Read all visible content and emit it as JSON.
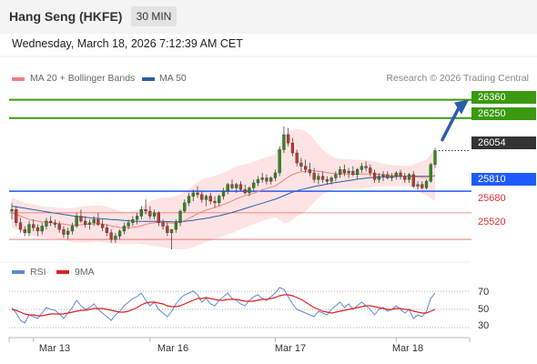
{
  "header": {
    "title": "Hang Seng (HKFE)",
    "timeframe": "30 MIN"
  },
  "datetime": "Wednesday, March 18, 2026 7:12:39 AM CET",
  "legend": {
    "items": [
      {
        "label": "MA 20 + Bollinger Bands",
        "color": "#f08080"
      },
      {
        "label": "MA 50",
        "color": "#2b5ea8"
      }
    ],
    "credit": "Research © 2026 Trading Central"
  },
  "price_levels": {
    "resistance_2": "26360",
    "resistance_1": "26250",
    "current": "26054",
    "pivot": "25810",
    "support_1": "25680",
    "support_2": "25520"
  },
  "rsi_panel": {
    "legend": [
      {
        "label": "RSI",
        "color": "#5b8ad6"
      },
      {
        "label": "9MA",
        "color": "#e02020"
      }
    ],
    "levels": [
      "70",
      "50",
      "30"
    ]
  },
  "x_axis": {
    "labels": [
      "Mar 13",
      "Mar 16",
      "Mar 17",
      "Mar 18"
    ]
  },
  "colors": {
    "resistance": "#3a9a10",
    "pivot": "#1e5bff",
    "support": "#e03030",
    "bull_candle": "#2f8a1a",
    "bear_candle": "#c0392b",
    "bollinger_fill": "#fde3e3",
    "arrow": "#2b5ea8"
  },
  "chart_data": {
    "type": "candlestick",
    "ohlc": [
      [
        25690,
        25740,
        25640,
        25700
      ],
      [
        25700,
        25720,
        25600,
        25620
      ],
      [
        25620,
        25650,
        25560,
        25580
      ],
      [
        25580,
        25600,
        25540,
        25560
      ],
      [
        25560,
        25630,
        25540,
        25610
      ],
      [
        25610,
        25640,
        25570,
        25590
      ],
      [
        25590,
        25610,
        25540,
        25570
      ],
      [
        25570,
        25620,
        25550,
        25600
      ],
      [
        25600,
        25650,
        25580,
        25630
      ],
      [
        25630,
        25660,
        25600,
        25620
      ],
      [
        25620,
        25640,
        25590,
        25610
      ],
      [
        25610,
        25630,
        25560,
        25580
      ],
      [
        25580,
        25600,
        25530,
        25550
      ],
      [
        25550,
        25590,
        25520,
        25570
      ],
      [
        25570,
        25620,
        25550,
        25600
      ],
      [
        25600,
        25680,
        25590,
        25660
      ],
      [
        25660,
        25700,
        25620,
        25630
      ],
      [
        25630,
        25660,
        25590,
        25610
      ],
      [
        25610,
        25640,
        25580,
        25620
      ],
      [
        25620,
        25660,
        25600,
        25640
      ],
      [
        25640,
        25680,
        25600,
        25610
      ],
      [
        25610,
        25640,
        25570,
        25590
      ],
      [
        25590,
        25610,
        25540,
        25560
      ],
      [
        25560,
        25580,
        25500,
        25520
      ],
      [
        25520,
        25560,
        25500,
        25540
      ],
      [
        25540,
        25580,
        25520,
        25570
      ],
      [
        25570,
        25620,
        25550,
        25600
      ],
      [
        25600,
        25640,
        25580,
        25620
      ],
      [
        25620,
        25660,
        25600,
        25640
      ],
      [
        25640,
        25680,
        25610,
        25660
      ],
      [
        25660,
        25720,
        25640,
        25700
      ],
      [
        25700,
        25760,
        25670,
        25690
      ],
      [
        25690,
        25720,
        25640,
        25660
      ],
      [
        25660,
        25700,
        25640,
        25680
      ],
      [
        25680,
        25690,
        25600,
        25620
      ],
      [
        25620,
        25640,
        25580,
        25600
      ],
      [
        25600,
        25620,
        25540,
        25560
      ],
      [
        25560,
        25580,
        25460,
        25580
      ],
      [
        25580,
        25640,
        25560,
        25620
      ],
      [
        25620,
        25700,
        25600,
        25690
      ],
      [
        25690,
        25760,
        25680,
        25740
      ],
      [
        25740,
        25800,
        25720,
        25780
      ],
      [
        25780,
        25820,
        25750,
        25800
      ],
      [
        25800,
        25840,
        25770,
        25790
      ],
      [
        25790,
        25810,
        25740,
        25760
      ],
      [
        25760,
        25790,
        25720,
        25780
      ],
      [
        25780,
        25800,
        25730,
        25750
      ],
      [
        25750,
        25780,
        25710,
        25740
      ],
      [
        25740,
        25790,
        25720,
        25780
      ],
      [
        25780,
        25830,
        25760,
        25810
      ],
      [
        25810,
        25860,
        25790,
        25850
      ],
      [
        25850,
        25880,
        25820,
        25830
      ],
      [
        25830,
        25860,
        25800,
        25850
      ],
      [
        25850,
        25870,
        25810,
        25820
      ],
      [
        25820,
        25850,
        25790,
        25800
      ],
      [
        25800,
        25840,
        25780,
        25830
      ],
      [
        25830,
        25880,
        25810,
        25860
      ],
      [
        25860,
        25900,
        25840,
        25880
      ],
      [
        25880,
        25920,
        25860,
        25890
      ],
      [
        25890,
        25910,
        25850,
        25870
      ],
      [
        25870,
        25900,
        25850,
        25890
      ],
      [
        25890,
        25940,
        25870,
        25920
      ],
      [
        25920,
        26080,
        25900,
        26060
      ],
      [
        26060,
        26200,
        26040,
        26150
      ],
      [
        26150,
        26190,
        26080,
        26100
      ],
      [
        26100,
        26130,
        26020,
        26040
      ],
      [
        26040,
        26060,
        25960,
        25980
      ],
      [
        25980,
        26010,
        25930,
        25960
      ],
      [
        25960,
        26000,
        25920,
        25940
      ],
      [
        25940,
        25980,
        25900,
        25920
      ],
      [
        25920,
        25950,
        25860,
        25880
      ],
      [
        25880,
        25920,
        25850,
        25900
      ],
      [
        25900,
        25930,
        25860,
        25880
      ],
      [
        25880,
        25900,
        25850,
        25870
      ],
      [
        25870,
        25900,
        25850,
        25890
      ],
      [
        25890,
        25930,
        25870,
        25910
      ],
      [
        25910,
        25960,
        25890,
        25940
      ],
      [
        25940,
        25970,
        25900,
        25920
      ],
      [
        25920,
        25950,
        25890,
        25930
      ],
      [
        25930,
        25960,
        25900,
        25910
      ],
      [
        25910,
        25950,
        25880,
        25940
      ],
      [
        25940,
        25980,
        25920,
        25960
      ],
      [
        25960,
        25990,
        25930,
        25950
      ],
      [
        25950,
        25970,
        25900,
        25920
      ],
      [
        25920,
        25940,
        25860,
        25880
      ],
      [
        25880,
        25920,
        25860,
        25900
      ],
      [
        25900,
        25930,
        25870,
        25910
      ],
      [
        25910,
        25930,
        25880,
        25890
      ],
      [
        25890,
        25920,
        25870,
        25900
      ],
      [
        25900,
        25930,
        25880,
        25920
      ],
      [
        25920,
        25940,
        25880,
        25900
      ],
      [
        25900,
        25920,
        25860,
        25880
      ],
      [
        25880,
        25920,
        25860,
        25910
      ],
      [
        25910,
        25930,
        25830,
        25840
      ],
      [
        25840,
        25870,
        25820,
        25850
      ],
      [
        25850,
        25870,
        25820,
        25830
      ],
      [
        25830,
        25880,
        25820,
        25870
      ],
      [
        25870,
        25980,
        25860,
        25970
      ],
      [
        25970,
        26070,
        25950,
        26054
      ]
    ],
    "ma20": [
      25680,
      25670,
      25660,
      25650,
      25640,
      25635,
      25630,
      25625,
      25622,
      25620,
      25618,
      25615,
      25612,
      25608,
      25605,
      25606,
      25608,
      25610,
      25612,
      25614,
      25615,
      25612,
      25608,
      25602,
      25596,
      25592,
      25590,
      25590,
      25592,
      25596,
      25602,
      25610,
      25616,
      25620,
      25622,
      25622,
      25620,
      25618,
      25620,
      25625,
      25634,
      25646,
      25660,
      25674,
      25686,
      25696,
      25704,
      25712,
      25720,
      25730,
      25740,
      25752,
      25764,
      25774,
      25782,
      25790,
      25798,
      25808,
      25818,
      25826,
      25834,
      25842,
      25858,
      25878,
      25896,
      25910,
      25920,
      25926,
      25930,
      25932,
      25932,
      25930,
      25926,
      25922,
      25918,
      25915,
      25914,
      25914,
      25913,
      25912,
      25912,
      25913,
      25914,
      25914,
      25913,
      25910,
      25908,
      25906,
      25904,
      25903,
      25902,
      25901,
      25900,
      25897,
      25895,
      25893,
      25893,
      25898,
      25905
    ],
    "ma50": [
      25720,
      25716,
      25712,
      25708,
      25703,
      25699,
      25695,
      25690,
      25686,
      25682,
      25678,
      25674,
      25670,
      25666,
      25662,
      25659,
      25656,
      25653,
      25650,
      25648,
      25646,
      25644,
      25642,
      25640,
      25638,
      25636,
      25634,
      25632,
      25630,
      25629,
      25628,
      25628,
      25628,
      25628,
      25628,
      25628,
      25627,
      25626,
      25626,
      25627,
      25629,
      25632,
      25635,
      25639,
      25643,
      25647,
      25652,
      25657,
      25662,
      25668,
      25675,
      25682,
      25690,
      25698,
      25706,
      25714,
      25722,
      25730,
      25738,
      25746,
      25754,
      25762,
      25772,
      25783,
      25794,
      25804,
      25812,
      25820,
      25826,
      25832,
      25838,
      25843,
      25848,
      25853,
      25858,
      25862,
      25866,
      25870,
      25874,
      25878,
      25882,
      25885,
      25888,
      25891,
      25893,
      25894,
      25895,
      25896,
      25897,
      25898,
      25899,
      25900,
      25901,
      25901,
      25900,
      25899,
      25899,
      25900,
      25902
    ],
    "bb_upper": [
      25770,
      25760,
      25750,
      25740,
      25735,
      25730,
      25725,
      25720,
      25716,
      25714,
      25712,
      25710,
      25708,
      25706,
      25708,
      25712,
      25716,
      25720,
      25722,
      25724,
      25724,
      25722,
      25716,
      25708,
      25698,
      25690,
      25686,
      25686,
      25690,
      25698,
      25712,
      25730,
      25748,
      25760,
      25766,
      25770,
      25772,
      25774,
      25780,
      25790,
      25806,
      25826,
      25846,
      25864,
      25878,
      25888,
      25896,
      25902,
      25910,
      25920,
      25932,
      25946,
      25958,
      25966,
      25972,
      25978,
      25986,
      25996,
      26006,
      26014,
      26022,
      26030,
      26080,
      26140,
      26170,
      26180,
      26182,
      26180,
      26170,
      26150,
      26120,
      26090,
      26060,
      26040,
      26020,
      26008,
      26004,
      26004,
      26002,
      26000,
      25998,
      25998,
      25998,
      25996,
      25990,
      25982,
      25976,
      25972,
      25968,
      25966,
      25964,
      25962,
      25960,
      25970,
      25980,
      25990,
      26000,
      26030,
      26060
    ],
    "bb_lower": [
      25590,
      25580,
      25570,
      25560,
      25545,
      25540,
      25535,
      25530,
      25528,
      25526,
      25524,
      25520,
      25516,
      25510,
      25502,
      25500,
      25500,
      25500,
      25502,
      25504,
      25506,
      25502,
      25500,
      25496,
      25494,
      25494,
      25494,
      25494,
      25494,
      25494,
      25492,
      25490,
      25484,
      25480,
      25478,
      25474,
      25468,
      25462,
      25460,
      25460,
      25462,
      25466,
      25474,
      25484,
      25494,
      25504,
      25512,
      25522,
      25530,
      25540,
      25548,
      25558,
      25570,
      25582,
      25592,
      25602,
      25610,
      25620,
      25630,
      25638,
      25646,
      25654,
      25636,
      25616,
      25622,
      25640,
      25658,
      25672,
      25690,
      25714,
      25744,
      25770,
      25792,
      25804,
      25816,
      25822,
      25824,
      25824,
      25824,
      25824,
      25826,
      25828,
      25830,
      25832,
      25836,
      25838,
      25840,
      25840,
      25840,
      25840,
      25840,
      25840,
      25840,
      25824,
      25810,
      25796,
      25786,
      25766,
      25750
    ],
    "rsi": [
      52,
      46,
      38,
      35,
      44,
      42,
      40,
      46,
      52,
      50,
      49,
      45,
      40,
      46,
      52,
      60,
      54,
      50,
      52,
      56,
      50,
      46,
      42,
      38,
      44,
      48,
      54,
      58,
      62,
      64,
      68,
      60,
      54,
      58,
      50,
      46,
      42,
      48,
      56,
      62,
      66,
      68,
      70,
      66,
      58,
      62,
      56,
      54,
      60,
      64,
      68,
      62,
      60,
      56,
      54,
      60,
      64,
      66,
      62,
      60,
      64,
      68,
      74,
      72,
      64,
      56,
      50,
      48,
      46,
      44,
      42,
      48,
      46,
      44,
      50,
      54,
      58,
      52,
      56,
      50,
      54,
      58,
      54,
      50,
      44,
      50,
      52,
      48,
      50,
      54,
      50,
      46,
      50,
      40,
      44,
      42,
      48,
      62,
      68
    ],
    "rsi_ma9": [
      50,
      49,
      47,
      45,
      44,
      44,
      43,
      43,
      44,
      45,
      45,
      45,
      45,
      46,
      47,
      48,
      49,
      49,
      50,
      51,
      51,
      51,
      50,
      49,
      48,
      47,
      47,
      48,
      50,
      52,
      55,
      57,
      58,
      58,
      57,
      56,
      54,
      53,
      53,
      54,
      56,
      58,
      60,
      62,
      62,
      63,
      62,
      61,
      60,
      60,
      61,
      61,
      61,
      60,
      59,
      59,
      59,
      60,
      61,
      61,
      62,
      63,
      65,
      66,
      66,
      65,
      63,
      61,
      58,
      55,
      52,
      50,
      48,
      47,
      46,
      47,
      48,
      49,
      50,
      51,
      52,
      53,
      54,
      54,
      53,
      52,
      51,
      50,
      50,
      51,
      51,
      50,
      50,
      48,
      47,
      46,
      46,
      48,
      50
    ],
    "price_range": [
      25400,
      26440
    ],
    "rsi_range": [
      20,
      80
    ],
    "x_labels": [
      "Mar 13",
      "Mar 16",
      "Mar 17",
      "Mar 18"
    ],
    "x_label_bars": [
      5,
      32,
      61,
      89
    ]
  }
}
